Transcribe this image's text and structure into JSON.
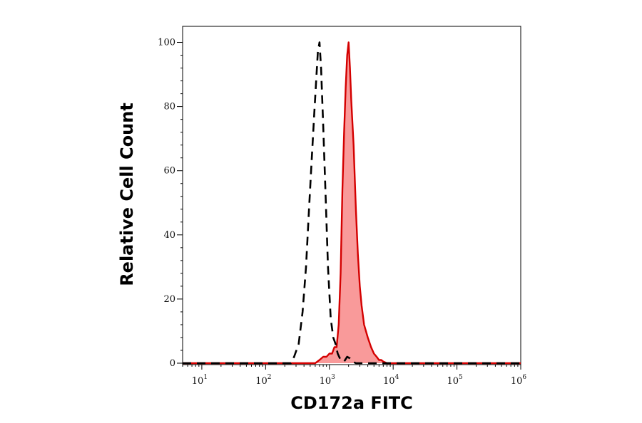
{
  "chart_data": {
    "type": "area",
    "title": "",
    "xlabel": "CD172a FITC",
    "ylabel": "Relative Cell Count",
    "x_scale": "log",
    "xlim": [
      5,
      1000000
    ],
    "ylim": [
      0,
      105
    ],
    "x_ticks": [
      {
        "base": "10",
        "exp": "1",
        "value": 10
      },
      {
        "base": "10",
        "exp": "2",
        "value": 100
      },
      {
        "base": "10",
        "exp": "3",
        "value": 1000
      },
      {
        "base": "10",
        "exp": "4",
        "value": 10000
      },
      {
        "base": "10",
        "exp": "5",
        "value": 100000
      },
      {
        "base": "10",
        "exp": "6",
        "value": 1000000
      }
    ],
    "y_ticks": [
      0,
      20,
      40,
      60,
      80,
      100
    ],
    "grid": false,
    "legend": "none",
    "series": [
      {
        "style": "dashed",
        "color": "#000000",
        "fill": "none",
        "x": [
          5,
          250,
          280,
          330,
          380,
          430,
          480,
          530,
          580,
          620,
          660,
          700,
          740,
          800,
          880,
          950,
          1050,
          1150,
          1250,
          1350,
          1500,
          1700,
          1900,
          2100,
          2300,
          2600,
          3000,
          1000000
        ],
        "y": [
          0,
          0,
          2,
          6,
          16,
          30,
          48,
          64,
          78,
          88,
          97,
          100,
          92,
          74,
          50,
          30,
          14,
          8,
          6,
          3,
          1,
          0.5,
          2,
          1.5,
          0.5,
          0,
          0,
          0
        ]
      },
      {
        "style": "solid",
        "color": "#d40000",
        "fill": "#f99a9a",
        "x": [
          5,
          600,
          700,
          800,
          900,
          1000,
          1100,
          1200,
          1300,
          1400,
          1500,
          1600,
          1700,
          1800,
          1900,
          2000,
          2100,
          2200,
          2400,
          2600,
          2800,
          3000,
          3200,
          3500,
          4000,
          4500,
          5000,
          5500,
          6000,
          6500,
          7000,
          8000,
          1000000
        ],
        "y": [
          0,
          0,
          1,
          2,
          2,
          3,
          3,
          5,
          5,
          12,
          28,
          54,
          72,
          86,
          96,
          100,
          92,
          82,
          68,
          48,
          34,
          24,
          18,
          12,
          8,
          5,
          3,
          2,
          1,
          1,
          0.5,
          0,
          0
        ]
      }
    ]
  }
}
